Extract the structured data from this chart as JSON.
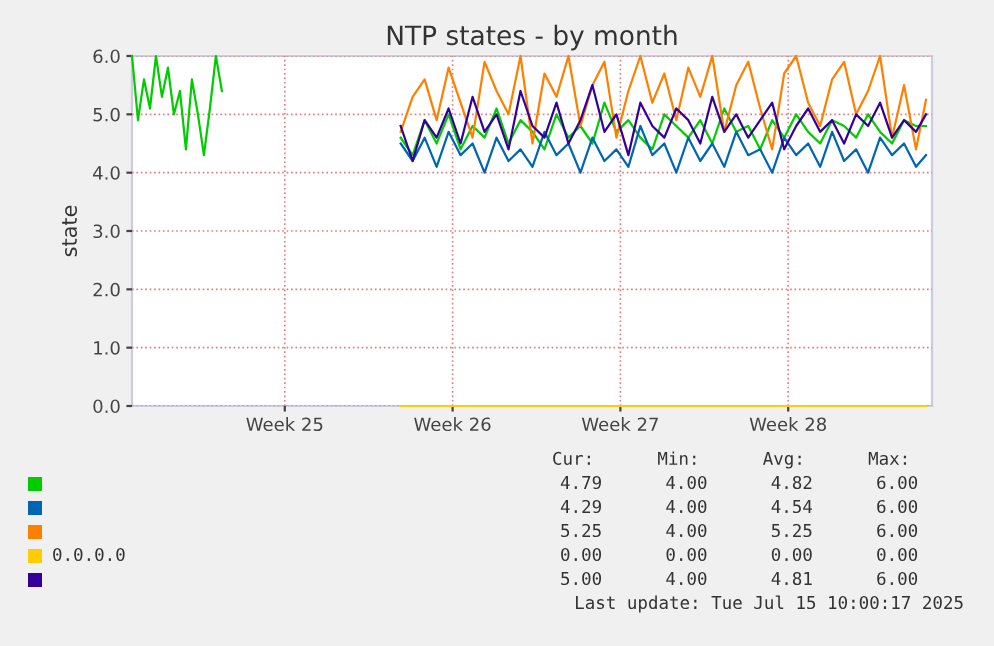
{
  "chart_data": {
    "type": "line",
    "title": "NTP states - by month",
    "ylabel": "state",
    "x": [
      "2025-06-13T03:00",
      "2025-06-13T09:00",
      "2025-06-13T15:00",
      "2025-06-13T21:00",
      "2025-06-14T03:00",
      "2025-06-14T09:00",
      "2025-06-14T15:00",
      "2025-06-14T21:00",
      "2025-06-15T03:00",
      "2025-06-15T09:00",
      "2025-06-15T15:00",
      "2025-06-15T21:00",
      "2025-06-16T03:00",
      "2025-06-16T09:00",
      "2025-06-16T15:00",
      "2025-06-16T21:00",
      "2025-06-20T12:00",
      "2025-06-24T08:00",
      "2025-06-24T20:00",
      "2025-06-25T08:00",
      "2025-06-25T20:00",
      "2025-06-26T08:00",
      "2025-06-26T20:00",
      "2025-06-27T08:00",
      "2025-06-27T20:00",
      "2025-06-28T08:00",
      "2025-06-28T20:00",
      "2025-06-29T08:00",
      "2025-06-29T20:00",
      "2025-06-30T08:00",
      "2025-06-30T20:00",
      "2025-07-01T08:00",
      "2025-07-01T20:00",
      "2025-07-02T08:00",
      "2025-07-02T20:00",
      "2025-07-03T08:00",
      "2025-07-03T20:00",
      "2025-07-04T08:00",
      "2025-07-04T20:00",
      "2025-07-05T08:00",
      "2025-07-05T20:00",
      "2025-07-06T08:00",
      "2025-07-06T20:00",
      "2025-07-07T08:00",
      "2025-07-07T20:00",
      "2025-07-08T08:00",
      "2025-07-08T20:00",
      "2025-07-09T08:00",
      "2025-07-09T20:00",
      "2025-07-10T08:00",
      "2025-07-10T20:00",
      "2025-07-11T08:00",
      "2025-07-11T20:00",
      "2025-07-12T08:00",
      "2025-07-12T20:00",
      "2025-07-13T08:00",
      "2025-07-13T20:00",
      "2025-07-14T08:00",
      "2025-07-14T20:00",
      "2025-07-15T08:00",
      "2025-07-15T20:00",
      "2025-07-16T06:00"
    ],
    "series": [
      {
        "color": "#00cc00",
        "values": [
          6.0,
          4.9,
          5.6,
          5.1,
          6.0,
          5.3,
          5.8,
          5.0,
          5.4,
          4.4,
          5.6,
          5.0,
          4.3,
          5.1,
          6.0,
          5.4,
          null,
          4.6,
          4.3,
          4.9,
          4.5,
          5.0,
          4.4,
          4.8,
          4.6,
          5.1,
          4.5,
          4.9,
          4.7,
          4.4,
          5.0,
          4.6,
          4.8,
          4.5,
          5.2,
          4.7,
          4.9,
          4.6,
          4.4,
          5.0,
          4.8,
          4.6,
          4.9,
          4.5,
          5.1,
          4.7,
          4.8,
          4.4,
          4.9,
          4.6,
          5.0,
          4.7,
          4.5,
          4.9,
          4.8,
          4.6,
          5.0,
          4.7,
          4.5,
          4.9,
          4.8,
          4.8
        ]
      },
      {
        "color": "#0066b3",
        "values": [
          null,
          null,
          null,
          null,
          null,
          null,
          null,
          null,
          null,
          null,
          null,
          null,
          null,
          null,
          null,
          null,
          null,
          4.5,
          4.2,
          4.6,
          4.1,
          4.7,
          4.3,
          4.5,
          4.0,
          4.6,
          4.2,
          4.4,
          4.1,
          4.7,
          4.3,
          4.5,
          4.0,
          4.6,
          4.2,
          4.4,
          4.1,
          4.8,
          4.3,
          4.5,
          4.0,
          4.6,
          4.2,
          4.5,
          4.1,
          4.7,
          4.3,
          4.4,
          4.0,
          4.6,
          4.3,
          4.5,
          4.1,
          4.7,
          4.2,
          4.4,
          4.0,
          4.6,
          4.3,
          4.5,
          4.1,
          4.3
        ]
      },
      {
        "color": "#ff8000",
        "values": [
          null,
          null,
          null,
          null,
          null,
          null,
          null,
          null,
          null,
          null,
          null,
          null,
          null,
          null,
          null,
          null,
          null,
          4.7,
          5.3,
          5.6,
          4.9,
          5.8,
          5.2,
          4.6,
          5.9,
          5.4,
          5.0,
          6.0,
          4.5,
          5.7,
          5.3,
          6.0,
          4.8,
          5.5,
          5.9,
          4.6,
          5.4,
          6.0,
          5.2,
          5.7,
          4.9,
          5.8,
          5.3,
          6.0,
          4.7,
          5.5,
          5.9,
          5.1,
          4.4,
          5.7,
          6.0,
          5.2,
          4.8,
          5.6,
          5.9,
          5.0,
          5.4,
          6.0,
          4.6,
          5.5,
          4.4,
          5.25
        ]
      },
      {
        "name": "0.0.0.0",
        "color": "#ffcc00",
        "values": [
          null,
          null,
          null,
          null,
          null,
          null,
          null,
          null,
          null,
          null,
          null,
          null,
          null,
          null,
          null,
          null,
          null,
          0,
          0,
          0,
          0,
          0,
          0,
          0,
          0,
          0,
          0,
          0,
          0,
          0,
          0,
          0,
          0,
          0,
          0,
          0,
          0,
          0,
          0,
          0,
          0,
          0,
          0,
          0,
          0,
          0,
          0,
          0,
          0,
          0,
          0,
          0,
          0,
          0,
          0,
          0,
          0,
          0,
          0,
          0,
          0,
          0
        ]
      },
      {
        "color": "#330099",
        "values": [
          null,
          null,
          null,
          null,
          null,
          null,
          null,
          null,
          null,
          null,
          null,
          null,
          null,
          null,
          null,
          null,
          null,
          4.8,
          4.2,
          4.9,
          4.6,
          5.1,
          4.5,
          5.3,
          4.7,
          5.0,
          4.4,
          5.4,
          4.8,
          4.6,
          5.2,
          4.5,
          4.9,
          5.5,
          4.7,
          5.0,
          4.3,
          5.2,
          4.8,
          4.6,
          5.1,
          4.9,
          4.5,
          5.3,
          4.7,
          5.0,
          4.6,
          4.9,
          5.2,
          4.4,
          4.8,
          5.1,
          4.7,
          4.9,
          4.5,
          5.0,
          4.8,
          5.2,
          4.6,
          4.9,
          4.7,
          5.0
        ]
      }
    ],
    "xlim": [
      "2025-06-13T03:00",
      "2025-07-16T12:00"
    ],
    "xticks": [
      {
        "value": "2025-06-19T12:00",
        "label": "Week 25"
      },
      {
        "value": "2025-06-26T12:00",
        "label": "Week 26"
      },
      {
        "value": "2025-07-03T12:00",
        "label": "Week 27"
      },
      {
        "value": "2025-07-10T12:00",
        "label": "Week 28"
      }
    ],
    "ylim": [
      0,
      6
    ],
    "yticks": [
      {
        "value": 0,
        "label": "0.0"
      },
      {
        "value": 1,
        "label": "1.0"
      },
      {
        "value": 2,
        "label": "2.0"
      },
      {
        "value": 3,
        "label": "3.0"
      },
      {
        "value": 4,
        "label": "4.0"
      },
      {
        "value": 5,
        "label": "5.0"
      },
      {
        "value": 6,
        "label": "6.0"
      }
    ],
    "grid": true,
    "legend": "bottom",
    "annotations": [
      "Cur:      Min:      Avg:      Max:",
      "4.79      4.00      4.82      6.00",
      "4.29      4.00      4.54      6.00",
      "5.25      4.00      5.25      6.00",
      "0.00      0.00      0.00      0.00",
      "5.00      4.00      4.81      6.00",
      "Last update: Tue Jul 15 10:00:17 2025"
    ]
  }
}
